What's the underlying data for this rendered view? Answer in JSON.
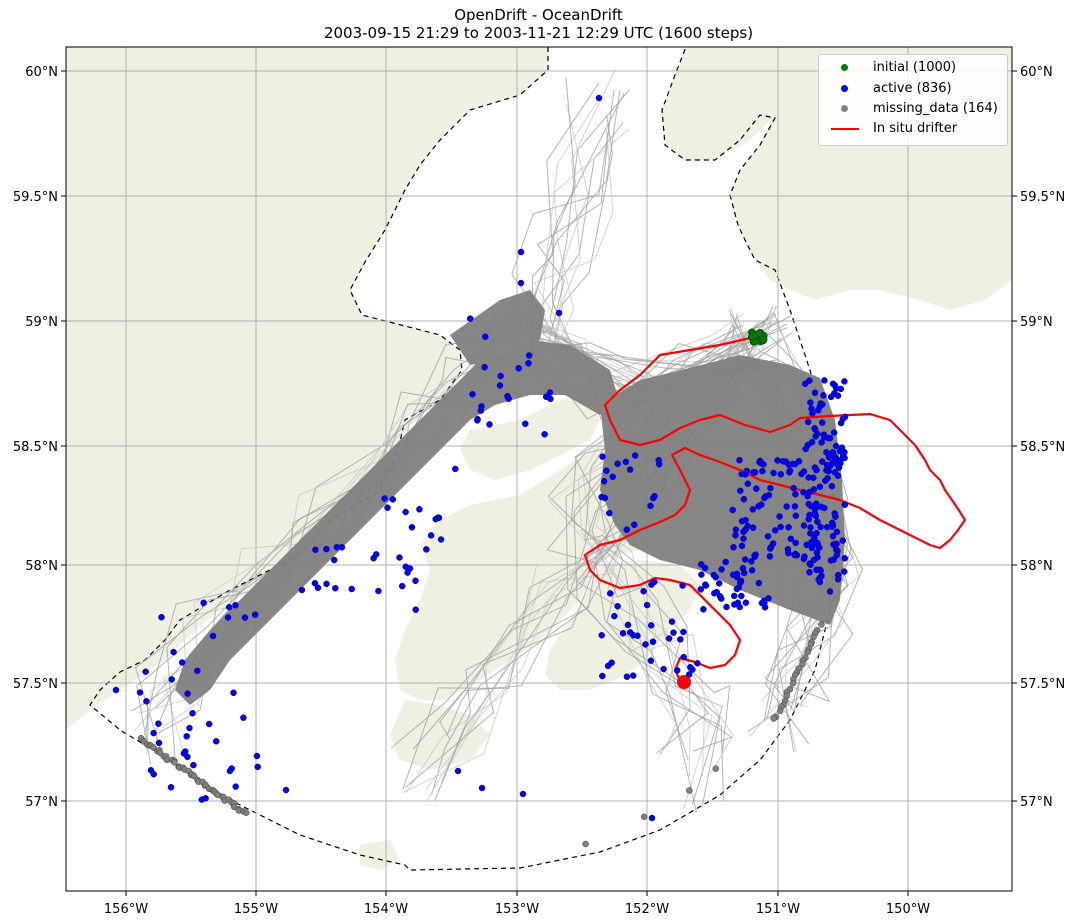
{
  "title": {
    "line1": "OpenDrift - OceanDrift",
    "line2": "2003-09-15 21:29 to 2003-11-21 12:29 UTC (1600 steps)"
  },
  "axes": {
    "lon_ticks": [
      "156°W",
      "155°W",
      "154°W",
      "153°W",
      "152°W",
      "151°W",
      "150°W"
    ],
    "lat_ticks": [
      "60°N",
      "59.5°N",
      "59°N",
      "58.5°N",
      "58°N",
      "57.5°N",
      "57°N"
    ],
    "lon_values": [
      -156,
      -155,
      -154,
      -153,
      -152,
      -151,
      -150
    ],
    "lat_values": [
      60,
      59.5,
      59,
      58.5,
      58,
      57.5,
      57
    ],
    "lon_range": [
      -156.5,
      -149.25
    ],
    "lat_range": [
      56.6,
      60.1
    ],
    "grid": true
  },
  "legend": {
    "placement": "top-right",
    "items": [
      {
        "label": "initial (1000)",
        "color": "#008000",
        "kind": "marker"
      },
      {
        "label": "active (836)",
        "color": "#0000ff",
        "kind": "marker"
      },
      {
        "label": "missing_data (164)",
        "color": "#808080",
        "kind": "marker"
      },
      {
        "label": "In situ drifter",
        "color": "#ff0000",
        "kind": "line"
      }
    ]
  },
  "colors": {
    "land": "#efefe2",
    "trajectory": "#808080",
    "trajectory_light": "#c8c8c8",
    "drifter": "#ff0000",
    "active": "#0000ff",
    "initial": "#008000",
    "missing": "#808080",
    "grid": "#b0b0b0"
  }
}
